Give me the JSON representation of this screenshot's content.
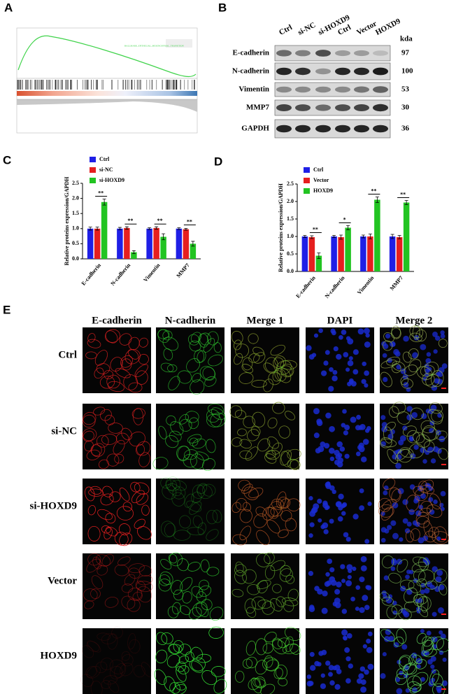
{
  "panel_labels": [
    "A",
    "B",
    "C",
    "D",
    "E"
  ],
  "gsea": {
    "gene_set": "HALLMARK_EPITHELIAL_MESENCHYMAL_TRANSITION"
  },
  "western_blot": {
    "lanes": [
      "Ctrl",
      "si-NC",
      "si-HOXD9",
      "Ctrl",
      "Vector",
      "HOXD9"
    ],
    "unit": "kda",
    "rows": [
      {
        "protein": "E-cadherin",
        "size": 97
      },
      {
        "protein": "N-cadherin",
        "size": 100
      },
      {
        "protein": "Vimentin",
        "size": 53
      },
      {
        "protein": "MMP7",
        "size": 30
      },
      {
        "protein": "GAPDH",
        "size": 36
      }
    ]
  },
  "chart_data": [
    {
      "type": "bar",
      "ylabel": "Relative proteins expression/GAPDH",
      "categories": [
        "E-cadherin",
        "N-cadherin",
        "Vimentin",
        "MMP7"
      ],
      "series": [
        {
          "name": "Ctrl",
          "color": "#1f1fe6",
          "values": [
            1.0,
            1.0,
            1.0,
            1.0
          ],
          "errors": [
            0.05,
            0.04,
            0.03,
            0.03
          ]
        },
        {
          "name": "si-NC",
          "color": "#e61f1f",
          "values": [
            1.0,
            1.02,
            1.02,
            0.98
          ],
          "errors": [
            0.05,
            0.04,
            0.04,
            0.03
          ]
        },
        {
          "name": "si-HOXD9",
          "color": "#22c422",
          "values": [
            1.88,
            0.22,
            0.73,
            0.5
          ],
          "errors": [
            0.1,
            0.05,
            0.1,
            0.08
          ]
        }
      ],
      "significance": [
        "**",
        "**",
        "**",
        "**"
      ],
      "ylim": [
        0,
        2.5
      ],
      "yticks": [
        {
          "value": 0,
          "label": "0.0"
        },
        {
          "value": 0.5,
          "label": "0.5"
        },
        {
          "value": 1,
          "label": "1.0"
        },
        {
          "value": 1.5,
          "label": "1.5"
        },
        {
          "value": 2,
          "label": "2.0"
        },
        {
          "value": 2.5,
          "label": "2.5"
        }
      ]
    },
    {
      "type": "bar",
      "ylabel": "Relative proteins expression/GAPDH",
      "categories": [
        "E-cadherin",
        "N-cadherin",
        "Vimentin",
        "MMP7"
      ],
      "series": [
        {
          "name": "Ctrl",
          "color": "#1f1fe6",
          "values": [
            1.0,
            1.0,
            1.0,
            1.0
          ],
          "errors": [
            0.03,
            0.03,
            0.04,
            0.06
          ]
        },
        {
          "name": "Vector",
          "color": "#e61f1f",
          "values": [
            0.98,
            0.98,
            1.0,
            0.98
          ],
          "errors": [
            0.04,
            0.06,
            0.07,
            0.05
          ]
        },
        {
          "name": "HOXD9",
          "color": "#22c422",
          "values": [
            0.45,
            1.25,
            2.05,
            1.97
          ],
          "errors": [
            0.08,
            0.06,
            0.08,
            0.06
          ]
        }
      ],
      "significance": [
        "**",
        "*",
        "**",
        "**"
      ],
      "ylim": [
        0,
        2.5
      ],
      "yticks": [
        {
          "value": 0,
          "label": "0.0"
        },
        {
          "value": 0.5,
          "label": "0.5"
        },
        {
          "value": 1,
          "label": "1.0"
        },
        {
          "value": 1.5,
          "label": "1.5"
        },
        {
          "value": 2,
          "label": "2.0"
        },
        {
          "value": 2.5,
          "label": "2.5"
        }
      ]
    }
  ],
  "immunofluorescence": {
    "channels": [
      "E-cadherin",
      "N-cadherin",
      "Merge 1",
      "DAPI",
      "Merge 2"
    ],
    "conditions": [
      "Ctrl",
      "si-NC",
      "si-HOXD9",
      "Vector",
      "HOXD9"
    ]
  }
}
